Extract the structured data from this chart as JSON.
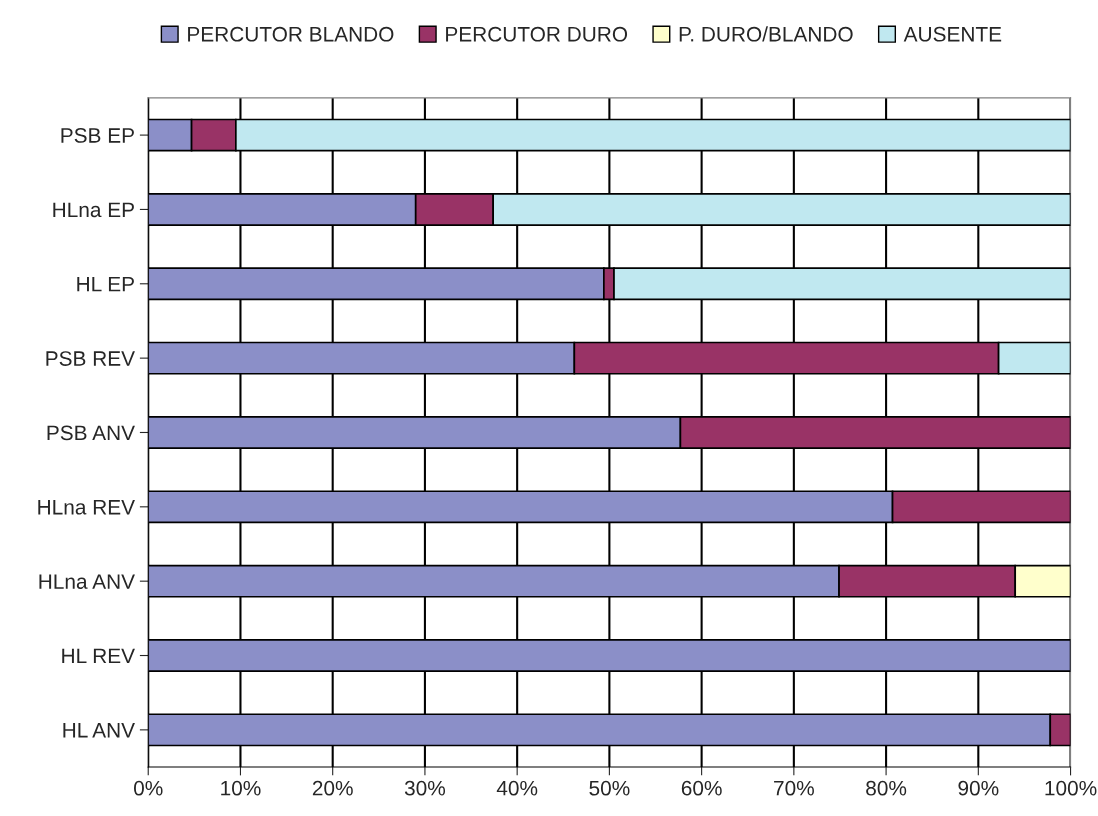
{
  "chart_data": {
    "type": "bar",
    "orientation": "horizontal",
    "stacked": true,
    "categories": [
      "PSB EP",
      "HLna EP",
      "HL EP",
      "PSB REV",
      "PSB ANV",
      "HLna REV",
      "HLna ANV",
      "HL REV",
      "HL ANV"
    ],
    "series": [
      {
        "name": "PERCUTOR BLANDO",
        "color": "#8b8fc8",
        "values": [
          4.7,
          29,
          49.4,
          46.2,
          57.7,
          80.7,
          74.9,
          100,
          97.8
        ]
      },
      {
        "name": "PERCUTOR DURO",
        "color": "#993366",
        "values": [
          4.8,
          8.4,
          1.1,
          46,
          42.3,
          19.3,
          19.1,
          null,
          2.2
        ]
      },
      {
        "name": "P. DURO/BLANDO",
        "color": "#ffffcc",
        "values": [
          null,
          null,
          null,
          null,
          null,
          null,
          6,
          null,
          null
        ]
      },
      {
        "name": "AUSENTE",
        "color": "#c0e8f0",
        "values": [
          90.5,
          62.6,
          49.5,
          7.8,
          null,
          null,
          null,
          null,
          null
        ]
      }
    ],
    "xlim": [
      0,
      100
    ],
    "xticks": [
      {
        "value": 0,
        "label": "0%"
      },
      {
        "value": 10,
        "label": "10%"
      },
      {
        "value": 20,
        "label": "20%"
      },
      {
        "value": 30,
        "label": "30%"
      },
      {
        "value": 40,
        "label": "40%"
      },
      {
        "value": 50,
        "label": "50%"
      },
      {
        "value": 60,
        "label": "60%"
      },
      {
        "value": 70,
        "label": "70%"
      },
      {
        "value": 80,
        "label": "80%"
      },
      {
        "value": 90,
        "label": "90%"
      },
      {
        "value": 100,
        "label": "100%"
      }
    ],
    "grid": "x",
    "legend": "top"
  }
}
